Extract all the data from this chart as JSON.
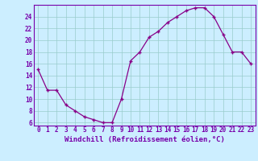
{
  "x": [
    0,
    1,
    2,
    3,
    4,
    5,
    6,
    7,
    8,
    9,
    10,
    11,
    12,
    13,
    14,
    15,
    16,
    17,
    18,
    19,
    20,
    21,
    22,
    23
  ],
  "y": [
    15,
    11.5,
    11.5,
    9,
    8,
    7,
    6.5,
    6,
    6,
    10,
    16.5,
    18,
    20.5,
    21.5,
    23,
    24,
    25,
    25.5,
    25.5,
    24,
    21,
    18,
    18,
    16
  ],
  "line_color": "#880088",
  "marker_color": "#880088",
  "bg_color": "#cceeff",
  "grid_color": "#99cccc",
  "xlabel": "Windchill (Refroidissement éolien,°C)",
  "xlim": [
    -0.5,
    23.5
  ],
  "ylim": [
    5.5,
    26
  ],
  "yticks": [
    6,
    8,
    10,
    12,
    14,
    16,
    18,
    20,
    22,
    24
  ],
  "xticks": [
    0,
    1,
    2,
    3,
    4,
    5,
    6,
    7,
    8,
    9,
    10,
    11,
    12,
    13,
    14,
    15,
    16,
    17,
    18,
    19,
    20,
    21,
    22,
    23
  ],
  "xlabel_color": "#7700aa",
  "tick_color": "#7700aa",
  "axis_color": "#7700aa",
  "label_fontsize": 6.5,
  "tick_fontsize": 5.5
}
